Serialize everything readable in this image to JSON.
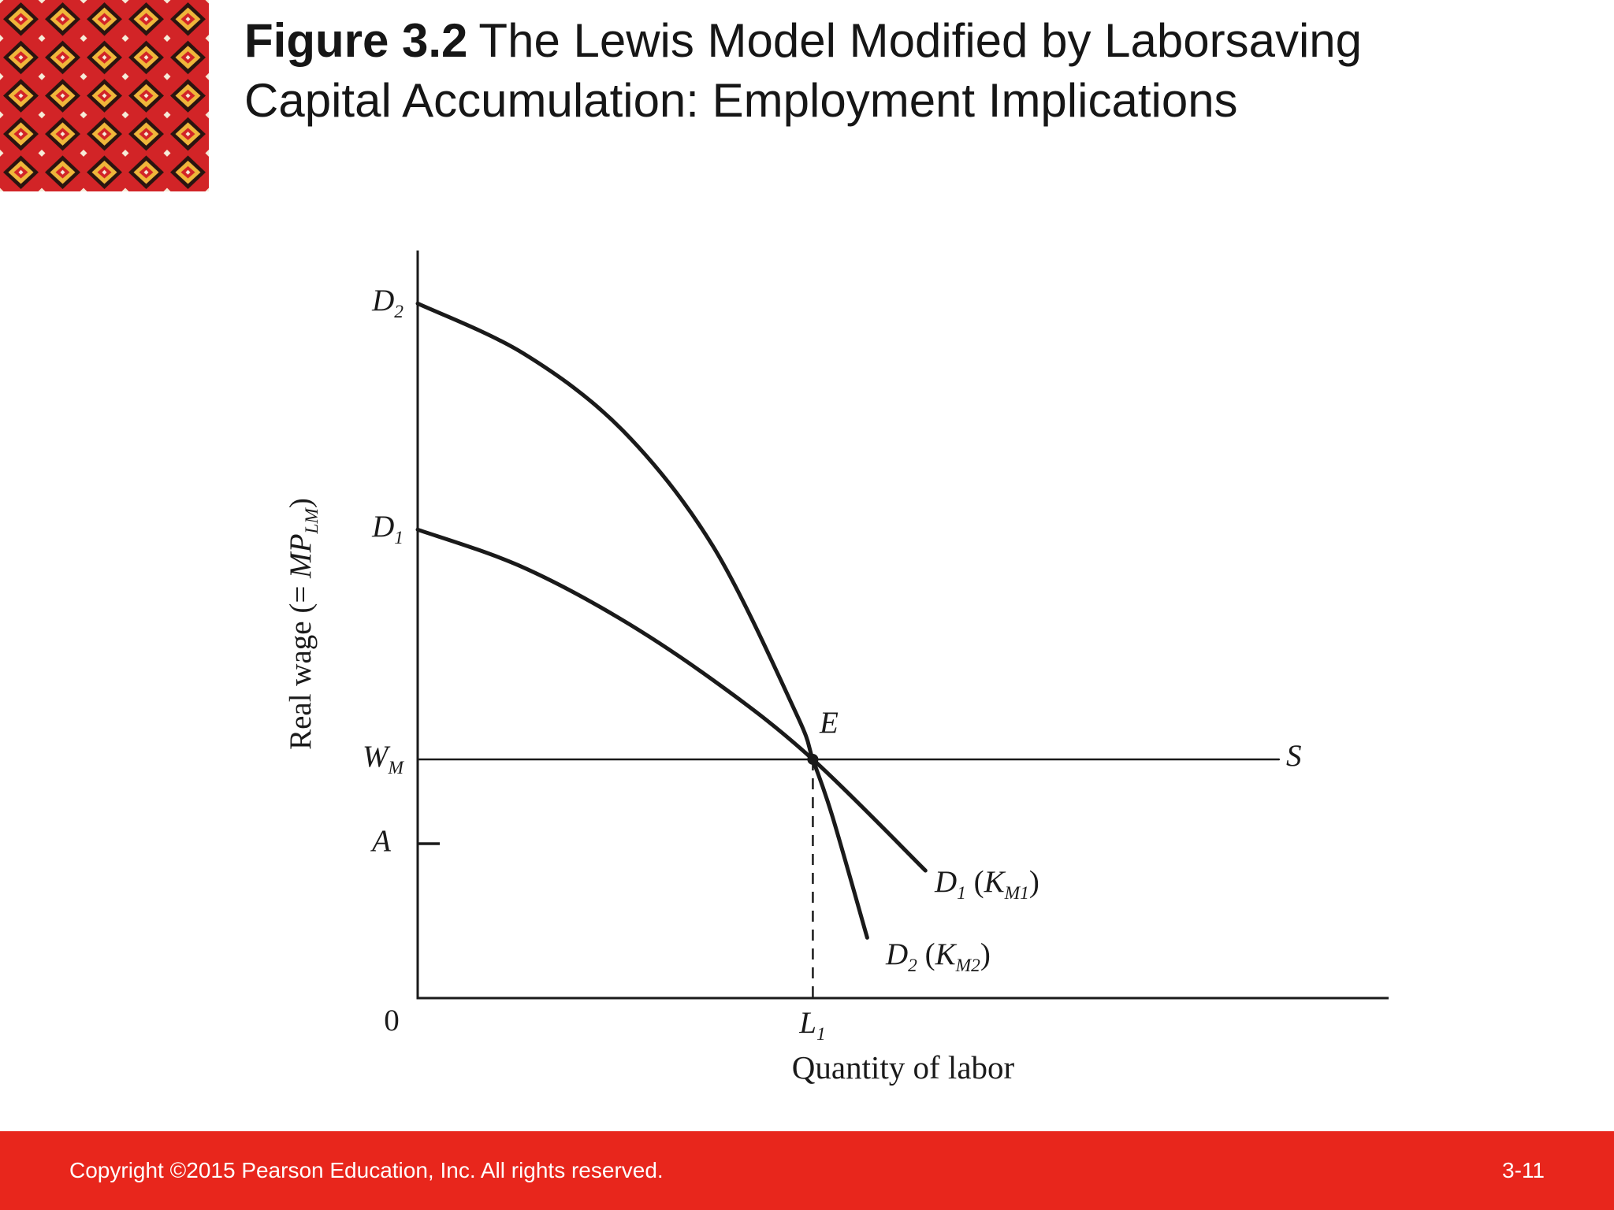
{
  "header": {
    "figure_label": "Figure 3.2",
    "title_rest": "The Lewis Model Modified by Laborsaving Capital Accumulation: Employment Implications"
  },
  "footer": {
    "copyright": "Copyright ©2015 Pearson Education, Inc. All rights reserved.",
    "slide_number": "3-11"
  },
  "colors": {
    "footer-bar": "#e8261c",
    "pattern-red": "#d22427",
    "pattern-yellow": "#f0b63a",
    "pattern-dark": "#2a1410",
    "pattern-cream": "#f6ecd9",
    "ink": "#1a1a1a"
  },
  "axis": {
    "y_label_prefix": "Real wage (= ",
    "y_label_var": "MP",
    "y_label_sub": "LM",
    "y_label_suffix": ")"
  },
  "labels": {
    "d2_axis": {
      "main": "D",
      "sub": "2"
    },
    "d1_axis": {
      "main": "D",
      "sub": "1"
    },
    "wm": {
      "main": "W",
      "sub": "M"
    },
    "s": "S",
    "l1": {
      "main": "L",
      "sub": "1"
    },
    "d1_curve": {
      "d": "D",
      "d_sub": "1",
      "open": " (",
      "k": "K",
      "k_sub": "M1",
      "close": ")"
    },
    "d2_curve": {
      "d": "D",
      "d_sub": "2",
      "open": " (",
      "k": "K",
      "k_sub": "M2",
      "close": ")"
    }
  },
  "chart_data": {
    "type": "line",
    "title": "The Lewis Model Modified by Laborsaving Capital Accumulation: Employment Implications",
    "xlabel": "Quantity of labor",
    "ylabel": "Real wage (= MP_LM)",
    "axes_numeric": false,
    "grid": false,
    "x_ticks": [
      {
        "label": "0",
        "x": 0
      },
      {
        "label": "L1",
        "x": 0.407
      }
    ],
    "y_ticks": [
      {
        "label": "A",
        "y": 0.207,
        "tick": true
      },
      {
        "label": "W_M",
        "y": 0.32,
        "tick": false
      }
    ],
    "equilibrium": {
      "label": "E",
      "x": 0.407,
      "y": 0.32,
      "note": "D1, D2 and S intersect at wage W_M and employment L1"
    },
    "series": [
      {
        "id": "D1",
        "name": "D1 (KM1) — labor demand with capital stock KM1",
        "points": [
          [
            0,
            0.628
          ],
          [
            0.104,
            0.58
          ],
          [
            0.208,
            0.509
          ],
          [
            0.313,
            0.418
          ],
          [
            0.407,
            0.32
          ],
          [
            0.523,
            0.171
          ]
        ]
      },
      {
        "id": "D2",
        "name": "D2 (KM2) — labor demand with laborsaving capital KM2",
        "points": [
          [
            0,
            0.931
          ],
          [
            0.109,
            0.864
          ],
          [
            0.211,
            0.761
          ],
          [
            0.304,
            0.606
          ],
          [
            0.389,
            0.384
          ],
          [
            0.407,
            0.32
          ],
          [
            0.427,
            0.244
          ],
          [
            0.463,
            0.081
          ]
        ]
      },
      {
        "id": "S",
        "name": "S — horizontal labor supply at wage W_M",
        "straight": true,
        "points": [
          [
            0,
            0.32
          ],
          [
            0.887,
            0.32
          ]
        ]
      }
    ]
  }
}
